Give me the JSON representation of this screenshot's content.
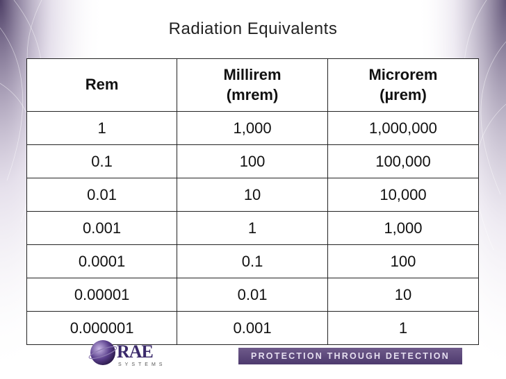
{
  "slide": {
    "title": "Radiation Equivalents",
    "headers": [
      "Rem",
      "Millirem (mrem)",
      "Microrem (µrem)"
    ],
    "rows": [
      [
        "1",
        "1,000",
        "1,000,000"
      ],
      [
        "0.1",
        "100",
        "100,000"
      ],
      [
        "0.01",
        "10",
        "10,000"
      ],
      [
        "0.001",
        "1",
        "1,000"
      ],
      [
        "0.0001",
        "0.1",
        "100"
      ],
      [
        "0.00001",
        "0.01",
        "10"
      ],
      [
        "0.000001",
        "0.001",
        "1"
      ]
    ],
    "logo": {
      "name": "RAE",
      "sub": "SYSTEMS"
    },
    "tagline": "PROTECTION THROUGH DETECTION"
  },
  "colors": {
    "brand": "#4e3a6e",
    "accent": "#7a6a9a"
  }
}
